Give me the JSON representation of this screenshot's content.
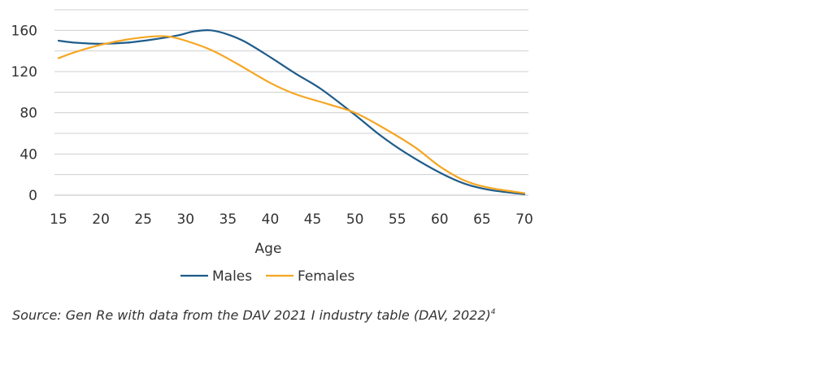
{
  "chart_data": {
    "type": "line",
    "title": "",
    "xlabel": "Age",
    "ylabel": "",
    "xlim": [
      15,
      70
    ],
    "ylim": [
      0,
      180
    ],
    "x_ticks": [
      15,
      20,
      25,
      30,
      35,
      40,
      45,
      50,
      55,
      60,
      65,
      70
    ],
    "y_ticks": [
      0,
      40,
      80,
      120,
      160
    ],
    "grid": true,
    "legend_position": "bottom",
    "series": [
      {
        "name": "Males",
        "color": "#1f5c8a",
        "x": [
          15,
          17,
          20,
          23,
          26,
          29,
          31,
          33,
          35,
          37,
          40,
          43,
          46,
          50,
          53,
          56,
          60,
          63,
          66,
          70
        ],
        "y": [
          150,
          148,
          147,
          148,
          151,
          155,
          159,
          160,
          156,
          149,
          134,
          118,
          103,
          78,
          58,
          41,
          22,
          11,
          5,
          1
        ]
      },
      {
        "name": "Females",
        "color": "#f5a623",
        "x": [
          15,
          17,
          20,
          23,
          26,
          28,
          30,
          33,
          36,
          40,
          43,
          47,
          50,
          53,
          57,
          60,
          63,
          66,
          70
        ],
        "y": [
          133,
          139,
          146,
          151,
          154,
          154,
          150,
          141,
          128,
          109,
          98,
          88,
          80,
          67,
          47,
          28,
          14,
          7,
          2
        ]
      }
    ]
  },
  "source": {
    "text": "Source: Gen Re with data from the DAV 2021 I industry table (DAV, 2022)",
    "footnote": "4"
  }
}
